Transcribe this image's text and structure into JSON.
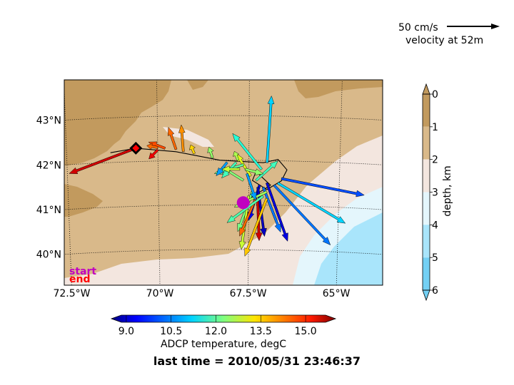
{
  "chart_data": {
    "type": "scatter",
    "subtype": "ADCP velocity vector map",
    "map": {
      "lon_range": [
        -72.6,
        -63.8
      ],
      "lat_range": [
        39.2,
        43.8
      ],
      "lon_ticks": [
        -72.5,
        -70.0,
        -67.5,
        -65.0
      ],
      "lon_tick_labels": [
        "72.5°W",
        "70°W",
        "67.5°W",
        "65°W"
      ],
      "lat_ticks": [
        40,
        41,
        42,
        43
      ],
      "lat_tick_labels": [
        "40°N",
        "41°N",
        "42°N",
        "43°N"
      ],
      "grid": "dotted graticule"
    },
    "reference_vector": {
      "label": "50 cm/s",
      "caption": "velocity at 52m",
      "speed_cm_s": 50
    },
    "markers": {
      "start": {
        "label": "start",
        "color": "#c000c0",
        "lon": -67.65,
        "lat": 41.05
      },
      "end": {
        "label": "end",
        "color": "#ff0000",
        "lon": -70.6,
        "lat": 42.3
      }
    },
    "temperature_colorbar": {
      "label": "ADCP temperature, degC",
      "range": [
        8.5,
        16.0
      ],
      "ticks": [
        "9.0",
        "10.5",
        "12.0",
        "13.5",
        "15.0"
      ],
      "tick_values": [
        9.0,
        10.5,
        12.0,
        13.5,
        15.0
      ]
    },
    "depth_colorbar": {
      "label": "depth, km",
      "ticks": [
        "0",
        "1",
        "2",
        "3",
        "4",
        "5",
        "6"
      ],
      "levels": [
        {
          "from": 0,
          "to": 1,
          "color": "#c29a5e"
        },
        {
          "from": 1,
          "to": 2,
          "color": "#d9b98a"
        },
        {
          "from": 2,
          "to": 3,
          "color": "#f3e6df"
        },
        {
          "from": 3,
          "to": 4,
          "color": "#e4f6fc"
        },
        {
          "from": 4,
          "to": 5,
          "color": "#a9e5fb"
        },
        {
          "from": 5,
          "to": 6,
          "color": "#73d0f4"
        }
      ]
    },
    "track": [
      [
        -71.3,
        42.22
      ],
      [
        -70.6,
        42.3
      ],
      [
        -69.5,
        42.2
      ],
      [
        -68.3,
        42.0
      ],
      [
        -67.1,
        41.95
      ],
      [
        -66.7,
        42.03
      ],
      [
        -66.45,
        41.8
      ],
      [
        -66.6,
        41.55
      ],
      [
        -67.0,
        41.35
      ],
      [
        -67.4,
        41.55
      ],
      [
        -67.3,
        41.75
      ],
      [
        -66.9,
        41.45
      ],
      [
        -67.65,
        41.05
      ]
    ],
    "vectors": [
      {
        "lon": -67.0,
        "lat": 41.95,
        "u": 0.1,
        "v": 1.5,
        "temp": 11.0
      },
      {
        "lon": -67.15,
        "lat": 41.8,
        "u": -0.8,
        "v": 0.8,
        "temp": 11.6
      },
      {
        "lon": -66.6,
        "lat": 41.6,
        "u": 2.3,
        "v": -0.3,
        "temp": 10.0
      },
      {
        "lon": -66.7,
        "lat": 41.5,
        "u": 1.9,
        "v": -0.85,
        "temp": 11.0
      },
      {
        "lon": -66.8,
        "lat": 41.45,
        "u": 1.6,
        "v": -1.3,
        "temp": 10.3
      },
      {
        "lon": -67.0,
        "lat": 41.5,
        "u": 0.6,
        "v": -1.3,
        "temp": 9.2
      },
      {
        "lon": -67.1,
        "lat": 41.4,
        "u": 0.5,
        "v": -1.0,
        "temp": 10.3
      },
      {
        "lon": -67.2,
        "lat": 41.45,
        "u": -0.3,
        "v": -0.8,
        "temp": 9.3
      },
      {
        "lon": -67.25,
        "lat": 41.4,
        "u": 0.2,
        "v": -1.1,
        "temp": 9.0
      },
      {
        "lon": -67.4,
        "lat": 41.3,
        "u": -0.4,
        "v": -0.9,
        "temp": 12.2
      },
      {
        "lon": -67.5,
        "lat": 41.2,
        "u": -0.2,
        "v": -1.2,
        "temp": 12.8
      },
      {
        "lon": -67.3,
        "lat": 41.15,
        "u": -0.45,
        "v": -0.85,
        "temp": 14.3
      },
      {
        "lon": -67.25,
        "lat": 41.1,
        "u": 0.05,
        "v": -0.9,
        "temp": 15.4
      },
      {
        "lon": -67.1,
        "lat": 41.2,
        "u": -1.0,
        "v": -0.6,
        "temp": 11.9
      },
      {
        "lon": -67.0,
        "lat": 41.15,
        "u": -0.6,
        "v": -1.3,
        "temp": 13.6
      },
      {
        "lon": -67.0,
        "lat": 41.3,
        "u": -0.9,
        "v": -0.35,
        "temp": 12.5
      },
      {
        "lon": -67.3,
        "lat": 41.55,
        "u": 0.6,
        "v": 0.45,
        "temp": 11.8
      },
      {
        "lon": -67.45,
        "lat": 41.65,
        "u": -0.4,
        "v": 0.5,
        "temp": 13.0
      },
      {
        "lon": -67.55,
        "lat": 41.7,
        "u": 0.25,
        "v": -0.6,
        "temp": 10.6
      },
      {
        "lon": -67.65,
        "lat": 41.55,
        "u": -0.6,
        "v": 0.3,
        "temp": 12.3
      },
      {
        "lon": -67.65,
        "lat": 41.9,
        "u": -0.8,
        "v": -0.2,
        "temp": 12.0
      },
      {
        "lon": -67.8,
        "lat": 42.0,
        "u": -0.1,
        "v": 0.2,
        "temp": 12.6
      },
      {
        "lon": -67.85,
        "lat": 41.95,
        "u": -0.4,
        "v": -0.35,
        "temp": 11.8
      },
      {
        "lon": -68.1,
        "lat": 41.95,
        "u": -0.3,
        "v": -0.3,
        "temp": 10.6
      },
      {
        "lon": -67.6,
        "lat": 41.8,
        "u": 0.5,
        "v": -0.1,
        "temp": 12.4
      },
      {
        "lon": -67.75,
        "lat": 41.8,
        "u": -0.5,
        "v": 0.0,
        "temp": 12.8
      },
      {
        "lon": -68.5,
        "lat": 42.05,
        "u": -0.1,
        "v": 0.25,
        "temp": 12.4
      },
      {
        "lon": -69.0,
        "lat": 42.15,
        "u": -0.1,
        "v": 0.2,
        "temp": 13.5
      },
      {
        "lon": -69.3,
        "lat": 42.2,
        "u": -0.05,
        "v": 0.6,
        "temp": 14.0
      },
      {
        "lon": -69.5,
        "lat": 42.25,
        "u": -0.2,
        "v": 0.5,
        "temp": 14.3
      },
      {
        "lon": -69.8,
        "lat": 42.28,
        "u": -0.45,
        "v": 0.15,
        "temp": 14.5
      },
      {
        "lon": -70.0,
        "lat": 42.3,
        "u": -0.3,
        "v": 0.05,
        "temp": 14.3
      },
      {
        "lon": -70.0,
        "lat": 42.25,
        "u": -0.25,
        "v": -0.2,
        "temp": 15.2
      },
      {
        "lon": -70.6,
        "lat": 42.3,
        "u": -1.85,
        "v": -0.5,
        "temp": 15.4
      }
    ]
  },
  "footer": {
    "last_time": "last time = 2010/05/31 23:46:37"
  }
}
